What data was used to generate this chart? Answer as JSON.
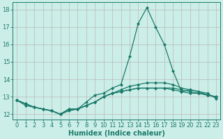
{
  "x": [
    0,
    1,
    2,
    3,
    4,
    5,
    6,
    7,
    8,
    9,
    10,
    11,
    12,
    13,
    14,
    15,
    16,
    17,
    18,
    19,
    20,
    21,
    22,
    23
  ],
  "lines": [
    [
      12.8,
      12.6,
      12.4,
      12.3,
      12.2,
      12.0,
      12.3,
      12.3,
      12.7,
      13.1,
      13.2,
      13.5,
      13.7,
      15.3,
      17.2,
      18.1,
      17.0,
      16.0,
      14.5,
      13.3,
      13.4,
      13.3,
      13.2,
      12.9
    ],
    [
      12.8,
      12.6,
      12.4,
      12.3,
      12.2,
      12.0,
      12.3,
      12.3,
      12.5,
      12.7,
      13.0,
      13.2,
      13.4,
      13.6,
      13.7,
      13.8,
      13.8,
      13.8,
      13.7,
      13.5,
      13.4,
      13.3,
      13.1,
      13.0
    ],
    [
      12.8,
      12.6,
      12.4,
      12.3,
      12.2,
      12.0,
      12.3,
      12.3,
      12.5,
      12.7,
      13.0,
      13.2,
      13.3,
      13.4,
      13.5,
      13.5,
      13.5,
      13.5,
      13.5,
      13.4,
      13.3,
      13.2,
      13.1,
      13.0
    ],
    [
      12.8,
      12.5,
      12.4,
      12.3,
      12.2,
      12.0,
      12.2,
      12.3,
      12.5,
      12.7,
      13.0,
      13.2,
      13.3,
      13.4,
      13.5,
      13.5,
      13.5,
      13.5,
      13.4,
      13.3,
      13.2,
      13.2,
      13.1,
      13.0
    ]
  ],
  "line_color": "#1a7a6a",
  "bg_color": "#cceee8",
  "grid_color": "#b8b8b8",
  "grid_color_minor": "#d4d4d4",
  "xlabel": "Humidex (Indice chaleur)",
  "ylim": [
    11.7,
    18.4
  ],
  "xlim": [
    -0.5,
    23.5
  ],
  "yticks": [
    12,
    13,
    14,
    15,
    16,
    17,
    18
  ],
  "fontsize_xlabel": 7,
  "fontsize_ticks": 6,
  "marker": "D",
  "markersize": 2.0,
  "linewidth": 0.9
}
